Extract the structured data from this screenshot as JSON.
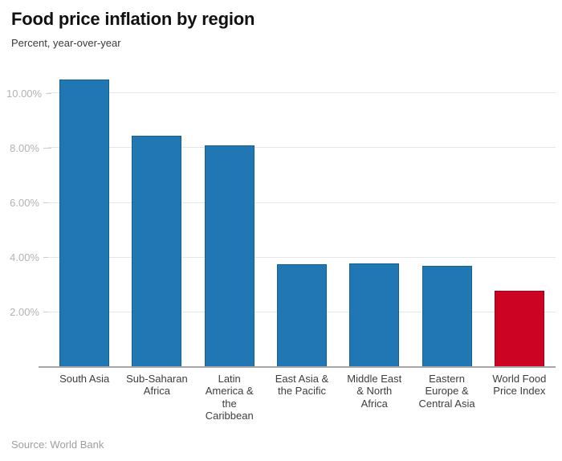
{
  "header": {
    "title": "Food price inflation by region",
    "subtitle": "Percent, year-over-year"
  },
  "footer": {
    "source": "Source: World Bank"
  },
  "colors": {
    "bar": "#2077B4",
    "bar_border": "#15608F",
    "highlight": "#CC0322",
    "highlight_border": "#8F0218",
    "gridline": "#E6E6E6",
    "axis_line": "#A6A6A6",
    "tick_mark": "#CCCCCC",
    "y_tick_label": "#B3B3B3",
    "x_tick_label": "#3D3D3D"
  },
  "chart_data": {
    "type": "bar",
    "title": "Food price inflation by region",
    "subtitle": "Percent, year-over-year",
    "categories": [
      "South Asia",
      "Sub-Saharan Africa",
      "Latin America & the Caribbean",
      "East Asia & the Pacific",
      "Middle East & North Africa",
      "Eastern Europe & Central Asia",
      "World Food Price Index"
    ],
    "values": [
      10.5,
      8.45,
      8.1,
      3.75,
      3.8,
      3.7,
      2.8
    ],
    "unit": "%",
    "highlighted_category": "World Food Price Index",
    "xlabel": "",
    "ylabel": "Percent, year-over-year",
    "ylim": [
      0,
      10.8
    ],
    "y_ticks": [
      2,
      4,
      6,
      8,
      10
    ],
    "y_tick_labels": [
      "2.00%",
      "4.00%",
      "6.00%",
      "8.00%",
      "10.00%"
    ],
    "x_tick_display": [
      "South Asia",
      "Sub-Saharan\nAfrica",
      "Latin\nAmerica &\nthe\nCaribbean",
      "East Asia &\nthe Pacific",
      "Middle East\n& North\nAfrica",
      "Eastern\nEurope &\nCentral Asia",
      "World Food\nPrice Index"
    ],
    "grid": true,
    "legend": false,
    "source": "Source: World Bank"
  }
}
